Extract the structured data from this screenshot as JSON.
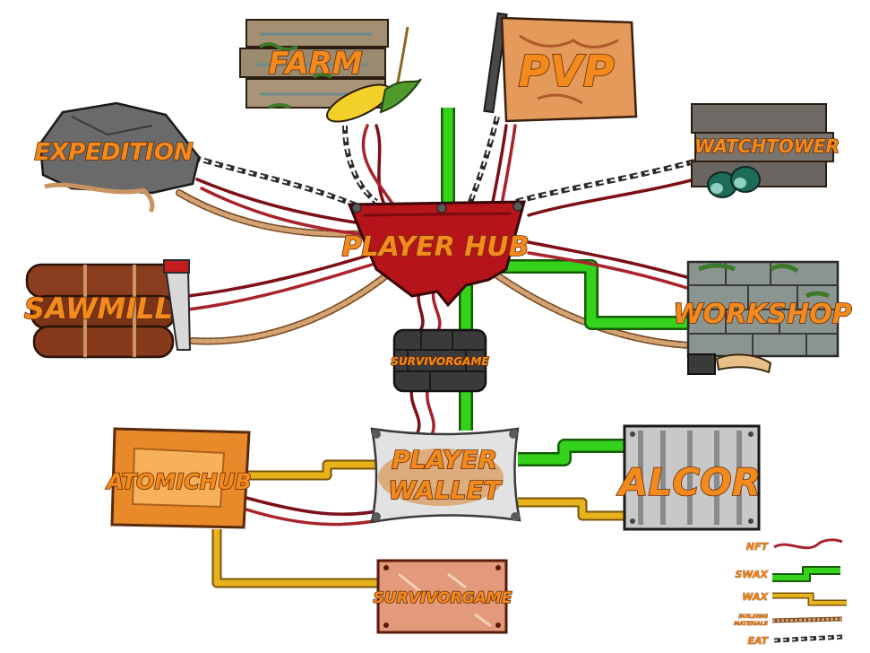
{
  "nodes": {
    "farm": "FARM",
    "pvp": "PVP",
    "expedition": "EXPEDITION",
    "watchtower": "WATCHTOWER",
    "player_hub": "PLAYER HUB",
    "sawmill": "SAWMILL",
    "workshop": "WORKSHOP",
    "survivorgame_hub": "SURVIVORGAME",
    "atomichub": "ATOMICHUB",
    "player_wallet_line1": "PLAYER",
    "player_wallet_line2": "WALLET",
    "alcor": "ALCOR",
    "survivorgame_market": "SURVIVORGAME"
  },
  "legend": {
    "nft": "NFT",
    "swax": "SWAX",
    "wax": "WAX",
    "building_line1": "BUILDING",
    "building_line2": "MATERIALS",
    "eat": "EAT"
  },
  "colors": {
    "label": "#f38a1e",
    "nft": "#a8232b",
    "swax": "#35d21c",
    "wax": "#e8b21c",
    "rope": "#c99461",
    "chain": "#3a3a3a",
    "hub": "#b5141a"
  }
}
